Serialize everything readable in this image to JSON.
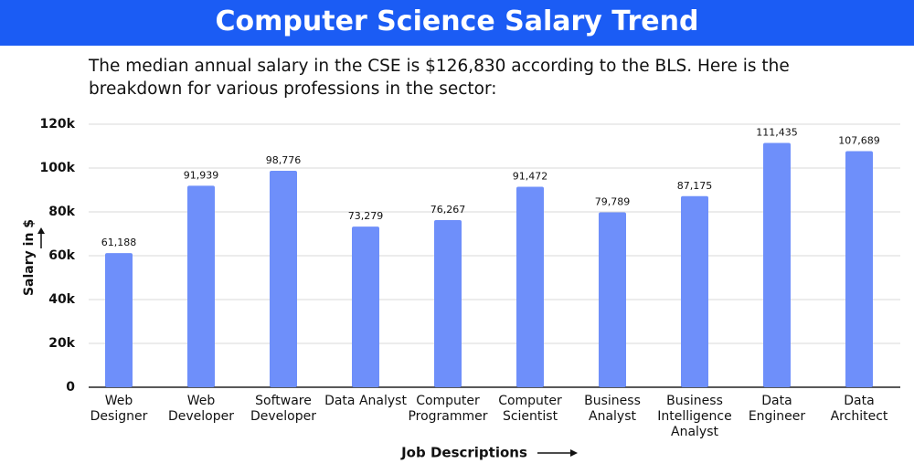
{
  "chart_data": {
    "type": "bar",
    "title": "Computer Science Salary Trend",
    "subtitle": "The median annual salary in the CSE is $126,830 according to the BLS. Here is the breakdown for various professions in the sector:",
    "x_label": "Job Descriptions",
    "y_label": "Salary in $",
    "categories": [
      "Web Designer",
      "Web Developer",
      "Software Developer",
      "Data Analyst",
      "Computer Programmer",
      "Computer Scientist",
      "Business Analyst",
      "Business Intelligence Analyst",
      "Data Engineer",
      "Data Architect"
    ],
    "values": [
      61188,
      91939,
      98776,
      73279,
      76267,
      91472,
      79789,
      87175,
      111435,
      107689
    ],
    "value_labels": [
      "61,188",
      "91,939",
      "98,776",
      "73,279",
      "76,267",
      "91,472",
      "79,789",
      "87,175",
      "111,435",
      "107,689"
    ],
    "color": "#6e8ffa",
    "ylim": [
      0,
      120000
    ],
    "yticks": [
      0,
      {
        "value": 20000,
        "label": "20k"
      },
      {
        "value": 40000,
        "label": "40k"
      },
      {
        "value": 60000,
        "label": "60k"
      },
      {
        "value": 80000,
        "label": "80k"
      },
      {
        "value": 100000,
        "label": "100k"
      },
      {
        "value": 120000,
        "label": "120k"
      }
    ],
    "grid": true
  }
}
